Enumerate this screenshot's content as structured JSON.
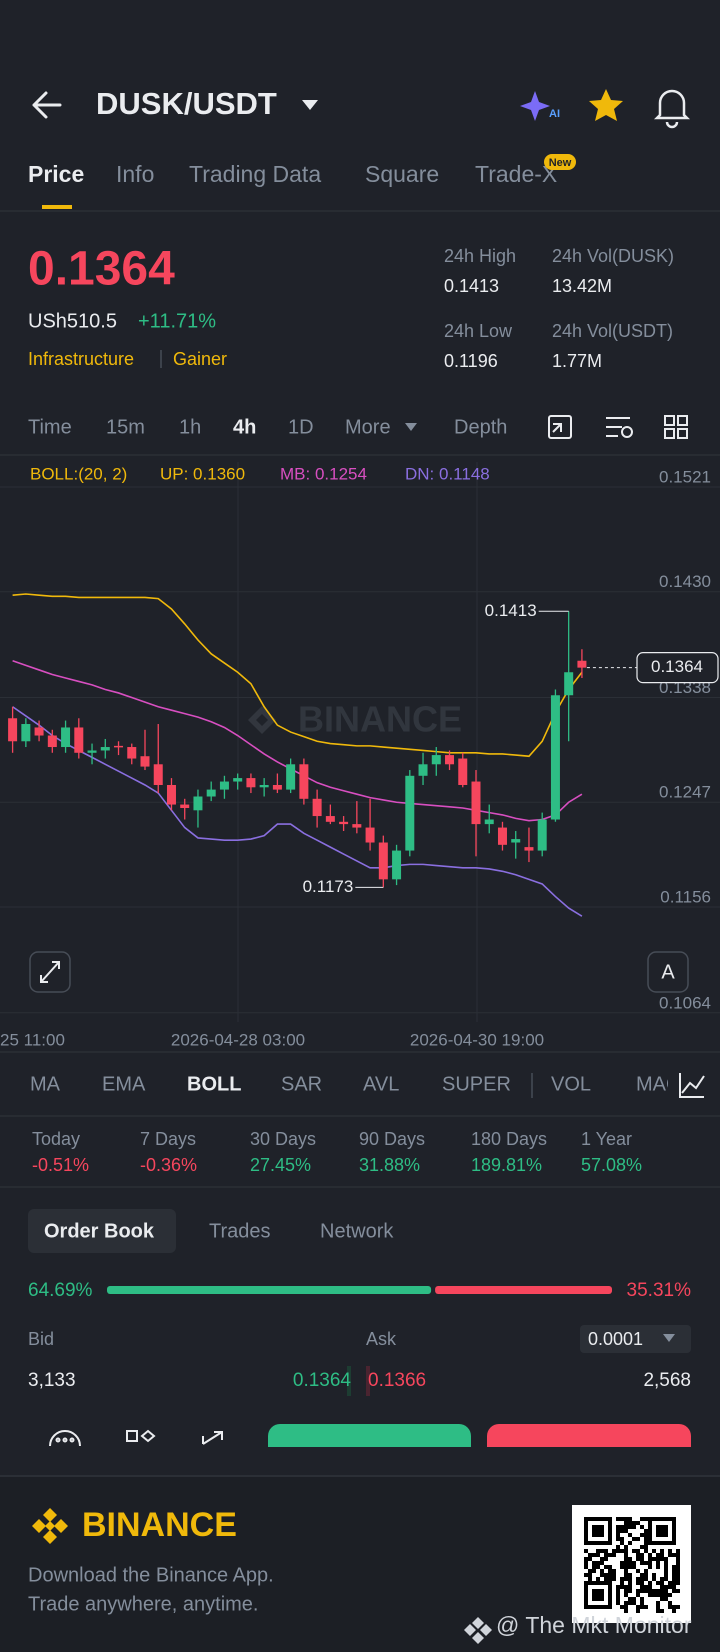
{
  "header": {
    "pair": "DUSK/USDT"
  },
  "tabs": {
    "items": [
      "Price",
      "Info",
      "Trading Data",
      "Square",
      "Trade-X"
    ],
    "badge": "New"
  },
  "ticker": {
    "price": "0.1364",
    "fiat": "USh510.5",
    "change": "+11.71%",
    "tags": [
      "Infrastructure",
      "Gainer"
    ],
    "stats": [
      {
        "label": "24h High",
        "value": "0.1413"
      },
      {
        "label": "24h Vol(DUSK)",
        "value": "13.42M"
      },
      {
        "label": "24h Low",
        "value": "0.1196"
      },
      {
        "label": "24h Vol(USDT)",
        "value": "1.77M"
      }
    ]
  },
  "intervals": {
    "items": [
      "Time",
      "15m",
      "1h",
      "4h",
      "1D",
      "More",
      "Depth"
    ]
  },
  "chart": {
    "type": "candlestick",
    "legend": [
      "BOLL:(20, 2)",
      "UP: 0.1360",
      "MB: 0.1254",
      "DN: 0.1148"
    ],
    "up_color": "#2ebd85",
    "down_color": "#f6465d",
    "ohlc": [
      [
        0.132,
        0.133,
        0.129,
        0.13
      ],
      [
        0.13,
        0.132,
        0.1295,
        0.1315
      ],
      [
        0.1312,
        0.1318,
        0.13,
        0.1305
      ],
      [
        0.1305,
        0.131,
        0.129,
        0.1295
      ],
      [
        0.1295,
        0.1318,
        0.129,
        0.1312
      ],
      [
        0.1312,
        0.132,
        0.1285,
        0.129
      ],
      [
        0.129,
        0.1298,
        0.128,
        0.1292
      ],
      [
        0.1292,
        0.1302,
        0.1285,
        0.1295
      ],
      [
        0.1296,
        0.13,
        0.1288,
        0.1295
      ],
      [
        0.1295,
        0.1298,
        0.128,
        0.1285
      ],
      [
        0.1287,
        0.131,
        0.1275,
        0.1278
      ],
      [
        0.128,
        0.1315,
        0.1255,
        0.1262
      ],
      [
        0.1262,
        0.1268,
        0.124,
        0.1245
      ],
      [
        0.1245,
        0.125,
        0.1232,
        0.1242
      ],
      [
        0.124,
        0.1258,
        0.1225,
        0.1252
      ],
      [
        0.1252,
        0.1265,
        0.1248,
        0.1258
      ],
      [
        0.1258,
        0.127,
        0.125,
        0.1265
      ],
      [
        0.1265,
        0.1272,
        0.1258,
        0.1268
      ],
      [
        0.1268,
        0.1272,
        0.1255,
        0.126
      ],
      [
        0.126,
        0.1268,
        0.1252,
        0.1262
      ],
      [
        0.1262,
        0.1272,
        0.1255,
        0.1258
      ],
      [
        0.1258,
        0.1285,
        0.1255,
        0.128
      ],
      [
        0.128,
        0.1285,
        0.1245,
        0.125
      ],
      [
        0.125,
        0.1258,
        0.1225,
        0.1235
      ],
      [
        0.1235,
        0.1245,
        0.1228,
        0.123
      ],
      [
        0.123,
        0.1235,
        0.1222,
        0.1228
      ],
      [
        0.1228,
        0.1248,
        0.122,
        0.1225
      ],
      [
        0.1225,
        0.125,
        0.1205,
        0.1212
      ],
      [
        0.1212,
        0.1218,
        0.1173,
        0.118
      ],
      [
        0.118,
        0.121,
        0.1175,
        0.1205
      ],
      [
        0.1205,
        0.1275,
        0.12,
        0.127
      ],
      [
        0.127,
        0.129,
        0.1262,
        0.128
      ],
      [
        0.128,
        0.1295,
        0.127,
        0.1288
      ],
      [
        0.1288,
        0.1292,
        0.1275,
        0.128
      ],
      [
        0.1285,
        0.129,
        0.126,
        0.1262
      ],
      [
        0.1265,
        0.1275,
        0.12,
        0.1228
      ],
      [
        0.1228,
        0.1245,
        0.122,
        0.1232
      ],
      [
        0.1225,
        0.123,
        0.1205,
        0.121
      ],
      [
        0.1212,
        0.1222,
        0.1198,
        0.1215
      ],
      [
        0.1208,
        0.1225,
        0.1195,
        0.1205
      ],
      [
        0.1205,
        0.1238,
        0.12,
        0.1232
      ],
      [
        0.1232,
        0.1345,
        0.123,
        0.134
      ],
      [
        0.134,
        0.1413,
        0.13,
        0.136
      ],
      [
        0.137,
        0.138,
        0.1355,
        0.1364
      ]
    ],
    "bands": [
      {
        "color": "#f0b90b",
        "values": [
          0.1427,
          0.1428,
          0.1427,
          0.1426,
          0.1426,
          0.1425,
          0.1425,
          0.1425,
          0.1425,
          0.1425,
          0.1425,
          0.1424,
          0.1415,
          0.1402,
          0.1388,
          0.1376,
          0.1368,
          0.136,
          0.135,
          0.133,
          0.1314,
          0.1308,
          0.1304,
          0.13,
          0.1298,
          0.1297,
          0.1296,
          0.1296,
          0.1295,
          0.1294,
          0.1293,
          0.1292,
          0.1291,
          0.129,
          0.129,
          0.129,
          0.1289,
          0.1289,
          0.1288,
          0.1287,
          0.13,
          0.1325,
          0.1345,
          0.136
        ]
      },
      {
        "color": "#d84fc1",
        "values": [
          0.137,
          0.1366,
          0.1362,
          0.1358,
          0.1355,
          0.1352,
          0.1349,
          0.1345,
          0.1342,
          0.1338,
          0.1334,
          0.133,
          0.1327,
          0.1324,
          0.1321,
          0.1317,
          0.1312,
          0.1305,
          0.1297,
          0.1289,
          0.1282,
          0.1276,
          0.127,
          0.1264,
          0.126,
          0.1257,
          0.1254,
          0.1251,
          0.1249,
          0.1247,
          0.1246,
          0.1245,
          0.1244,
          0.1243,
          0.1242,
          0.124,
          0.1238,
          0.1236,
          0.1233,
          0.1231,
          0.1232,
          0.1236,
          0.1247,
          0.1254
        ]
      },
      {
        "color": "#8a6fe0",
        "values": [
          0.133,
          0.1322,
          0.1314,
          0.1305,
          0.1298,
          0.1292,
          0.1286,
          0.128,
          0.1274,
          0.1268,
          0.1262,
          0.1255,
          0.124,
          0.1225,
          0.1216,
          0.1215,
          0.1214,
          0.1214,
          0.1215,
          0.1218,
          0.1228,
          0.1228,
          0.122,
          0.1214,
          0.1208,
          0.1202,
          0.1196,
          0.119,
          0.119,
          0.1192,
          0.1193,
          0.1193,
          0.1192,
          0.1191,
          0.119,
          0.119,
          0.1189,
          0.1187,
          0.1184,
          0.118,
          0.1176,
          0.1165,
          0.1155,
          0.1148
        ]
      }
    ],
    "ylim": [
      0.1056,
      0.1541
    ],
    "yticks": [
      0.1521,
      {
        "value": 0.143,
        "label": "0.1430"
      },
      0.1338,
      0.1247,
      0.1156,
      0.1064
    ],
    "x_labels": [
      "25 11:00",
      "2026-04-28 03:00",
      "2026-04-30 19:00"
    ],
    "high_marker": 0.1413,
    "low_marker": 0.1173,
    "last_price": 0.1364,
    "watermark": "BINANCE",
    "scale_button": "A"
  },
  "indicators": {
    "items": [
      "MA",
      "EMA",
      "BOLL",
      "SAR",
      "AVL",
      "SUPER",
      "VOL",
      "MACD"
    ]
  },
  "performance": [
    {
      "label": "Today",
      "value": "-0.51%"
    },
    {
      "label": "7 Days",
      "value": "-0.36%"
    },
    {
      "label": "30 Days",
      "value": "27.45%"
    },
    {
      "label": "90 Days",
      "value": "31.88%"
    },
    {
      "label": "180 Days",
      "value": "189.81%"
    },
    {
      "label": "1 Year",
      "value": "57.08%"
    }
  ],
  "order_book": {
    "tabs": [
      "Order Book",
      "Trades",
      "Network"
    ],
    "ratio": {
      "values": [
        64.69,
        35.31
      ],
      "value_labels": [
        "64.69%",
        "35.31%"
      ],
      "colors": [
        "#2ebd85",
        "#f6465d"
      ]
    },
    "bid_label": "Bid",
    "ask_label": "Ask",
    "precision": "0.0001",
    "rows": [
      {
        "bid_qty": "3,133",
        "bid": "0.1364",
        "ask": "0.1366",
        "ask_qty": "2,568"
      }
    ]
  },
  "footer": {
    "brand": "BINANCE",
    "lines": [
      "Download the Binance App.",
      "Trade anywhere, anytime."
    ],
    "watermark": "@ The Mkt Monitor"
  }
}
